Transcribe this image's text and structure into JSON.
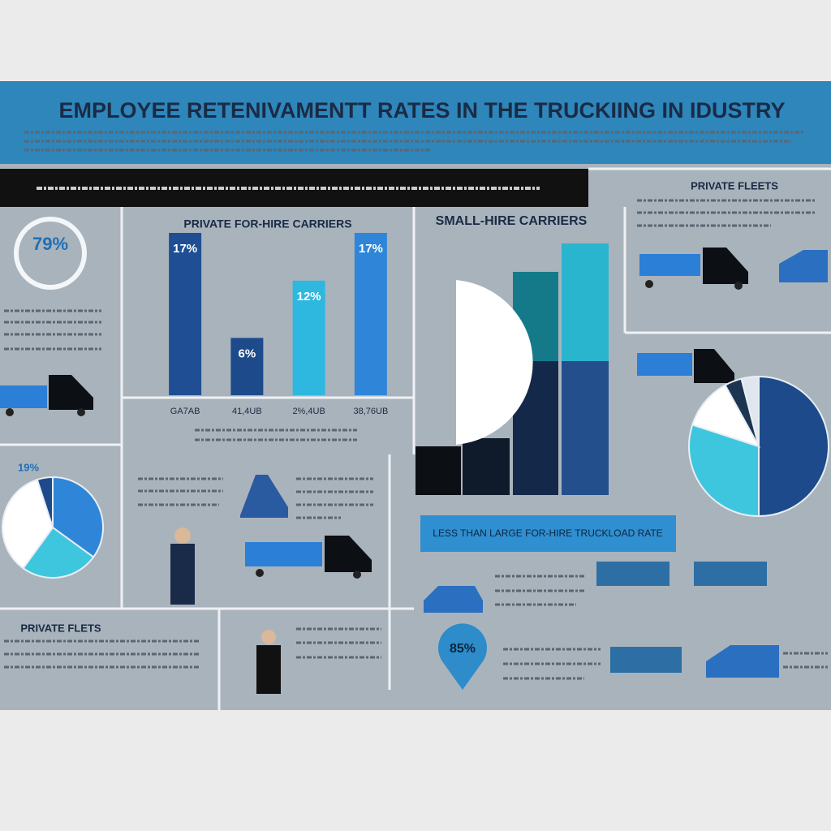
{
  "header": {
    "title": "EMPLOYEE RETENIVAMENTT RATES IN THE TRUCKIING IN IDUSTRY"
  },
  "panels": {
    "ring_label": "79%",
    "small_hire_title": "SMALL-HIRE CARRIERS",
    "private_fleets_top": "PRIVATE FLEETS",
    "private_fleets_bottom": "PRIVATE FLETS",
    "pie_label": "19%",
    "banner": "LESS THAN LARGE FOR-HIRE TRUCKLOAD RATE",
    "pin_label": "85%"
  },
  "chart_data": [
    {
      "type": "bar",
      "title": "PRIVATE FOR-HIRE CARRIERS",
      "categories": [
        "GA7AB",
        "41,4UB",
        "2%,4UB",
        "38,76UB"
      ],
      "values": [
        17,
        6,
        12,
        17
      ],
      "value_labels": [
        "17%",
        "6%",
        "12%",
        "17%"
      ],
      "colors": [
        "#1f4e94",
        "#1d4a8a",
        "#2eb8df",
        "#2f86d8"
      ]
    },
    {
      "type": "pie",
      "values": [
        35,
        25,
        35,
        5
      ],
      "colors": [
        "#2f86d8",
        "#3fc6df",
        "#ffffff",
        "#1d4a8a"
      ]
    },
    {
      "type": "pie",
      "values": [
        50,
        30,
        12,
        4,
        4
      ],
      "colors": [
        "#1d4a8a",
        "#3fc6df",
        "#ffffff",
        "#1c3550",
        "#dfe6ee"
      ]
    }
  ]
}
